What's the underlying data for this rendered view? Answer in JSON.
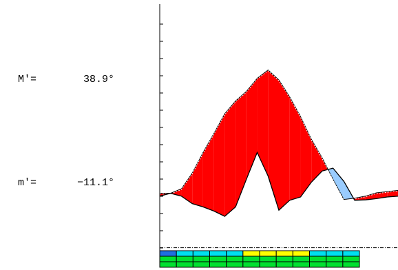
{
  "readouts": {
    "max": {
      "label": "M′=",
      "value": "38.9°"
    },
    "min": {
      "label": "m′=",
      "value": "−11.1°"
    }
  },
  "chart_data": {
    "type": "area",
    "title": "",
    "xlabel": "",
    "ylabel": "",
    "grid": false,
    "legend": "none",
    "x": [
      0,
      1,
      2,
      3,
      4,
      5,
      6,
      7,
      8,
      9,
      10,
      11,
      12,
      13,
      14,
      15,
      16,
      17,
      18,
      19,
      20,
      21,
      22
    ],
    "y_axis": {
      "min": -12.0,
      "max": 48.0,
      "unit": "°"
    },
    "reference_line": {
      "value": -11.1,
      "style": "dash-dot"
    },
    "series": [
      {
        "role": "upper",
        "values": [
          2.1,
          2.1,
          3.2,
          7.0,
          12.0,
          16.6,
          21.4,
          24.5,
          26.8,
          30.0,
          32.0,
          29.6,
          25.5,
          20.7,
          15.2,
          10.7,
          5.5,
          0.6,
          0.9,
          1.4,
          2.2,
          2.5,
          2.8
        ]
      },
      {
        "role": "lower",
        "values": [
          1.4,
          2.1,
          1.4,
          -0.4,
          -1.2,
          -2.2,
          -3.5,
          -1.2,
          5.5,
          12.0,
          6.3,
          -2.0,
          0.4,
          1.2,
          4.8,
          7.5,
          8.2,
          5.0,
          0.4,
          0.5,
          0.8,
          1.2,
          1.4
        ]
      }
    ],
    "fill_colors": {
      "upper_above": "#ff0000",
      "lower_above": "#99ccff"
    },
    "color_strip": {
      "rows": [
        [
          "#1f6fe0",
          "#00e0f0",
          "#00e0f0",
          "#00e0f0",
          "#00e0f0",
          "#ffff00",
          "#ffff00",
          "#ffff00",
          "#ffff00",
          "#00e0f0",
          "#00e0f0",
          "#00e0f0"
        ],
        [
          "#00e030",
          "#00e030",
          "#00e030",
          "#00e030",
          "#00e030",
          "#00e030",
          "#00e030",
          "#00e030",
          "#00e030",
          "#00e030",
          "#00e030",
          "#00e030"
        ],
        [
          "#00e030",
          "#00e030",
          "#00e030",
          "#00e030",
          "#00e030",
          "#00e030",
          "#00e030",
          "#00e030",
          "#00e030",
          "#00e030",
          "#00e030",
          "#00e030"
        ]
      ]
    }
  }
}
